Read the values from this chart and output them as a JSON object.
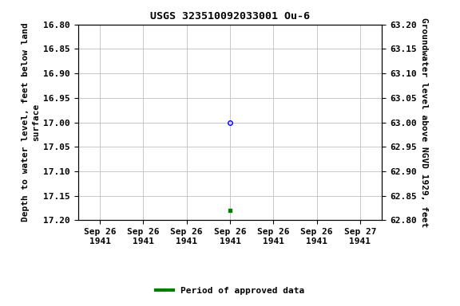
{
  "title": "USGS 323510092033001 Ou-6",
  "ylabel_left": "Depth to water level, feet below land\nsurface",
  "ylabel_right": "Groundwater level above NGVD 1929, feet",
  "ylim_left_top": 16.8,
  "ylim_left_bottom": 17.2,
  "ylim_right_top": 63.2,
  "ylim_right_bottom": 62.8,
  "yticks_left": [
    16.8,
    16.85,
    16.9,
    16.95,
    17.0,
    17.05,
    17.1,
    17.15,
    17.2
  ],
  "yticks_right": [
    63.2,
    63.15,
    63.1,
    63.05,
    63.0,
    62.95,
    62.9,
    62.85,
    62.8
  ],
  "point1_y": 17.0,
  "point1_color": "#0000ff",
  "point2_y": 17.18,
  "point2_color": "#008000",
  "point_x": 3.0,
  "xlim": [
    -0.5,
    6.5
  ],
  "xticklabels": [
    "Sep 26\n1941",
    "Sep 26\n1941",
    "Sep 26\n1941",
    "Sep 26\n1941",
    "Sep 26\n1941",
    "Sep 26\n1941",
    "Sep 27\n1941"
  ],
  "background_color": "#ffffff",
  "grid_color": "#c8c8c8",
  "legend_label": "Period of approved data",
  "legend_color": "#008000",
  "title_fontsize": 9.5,
  "axis_fontsize": 8,
  "tick_fontsize": 8
}
